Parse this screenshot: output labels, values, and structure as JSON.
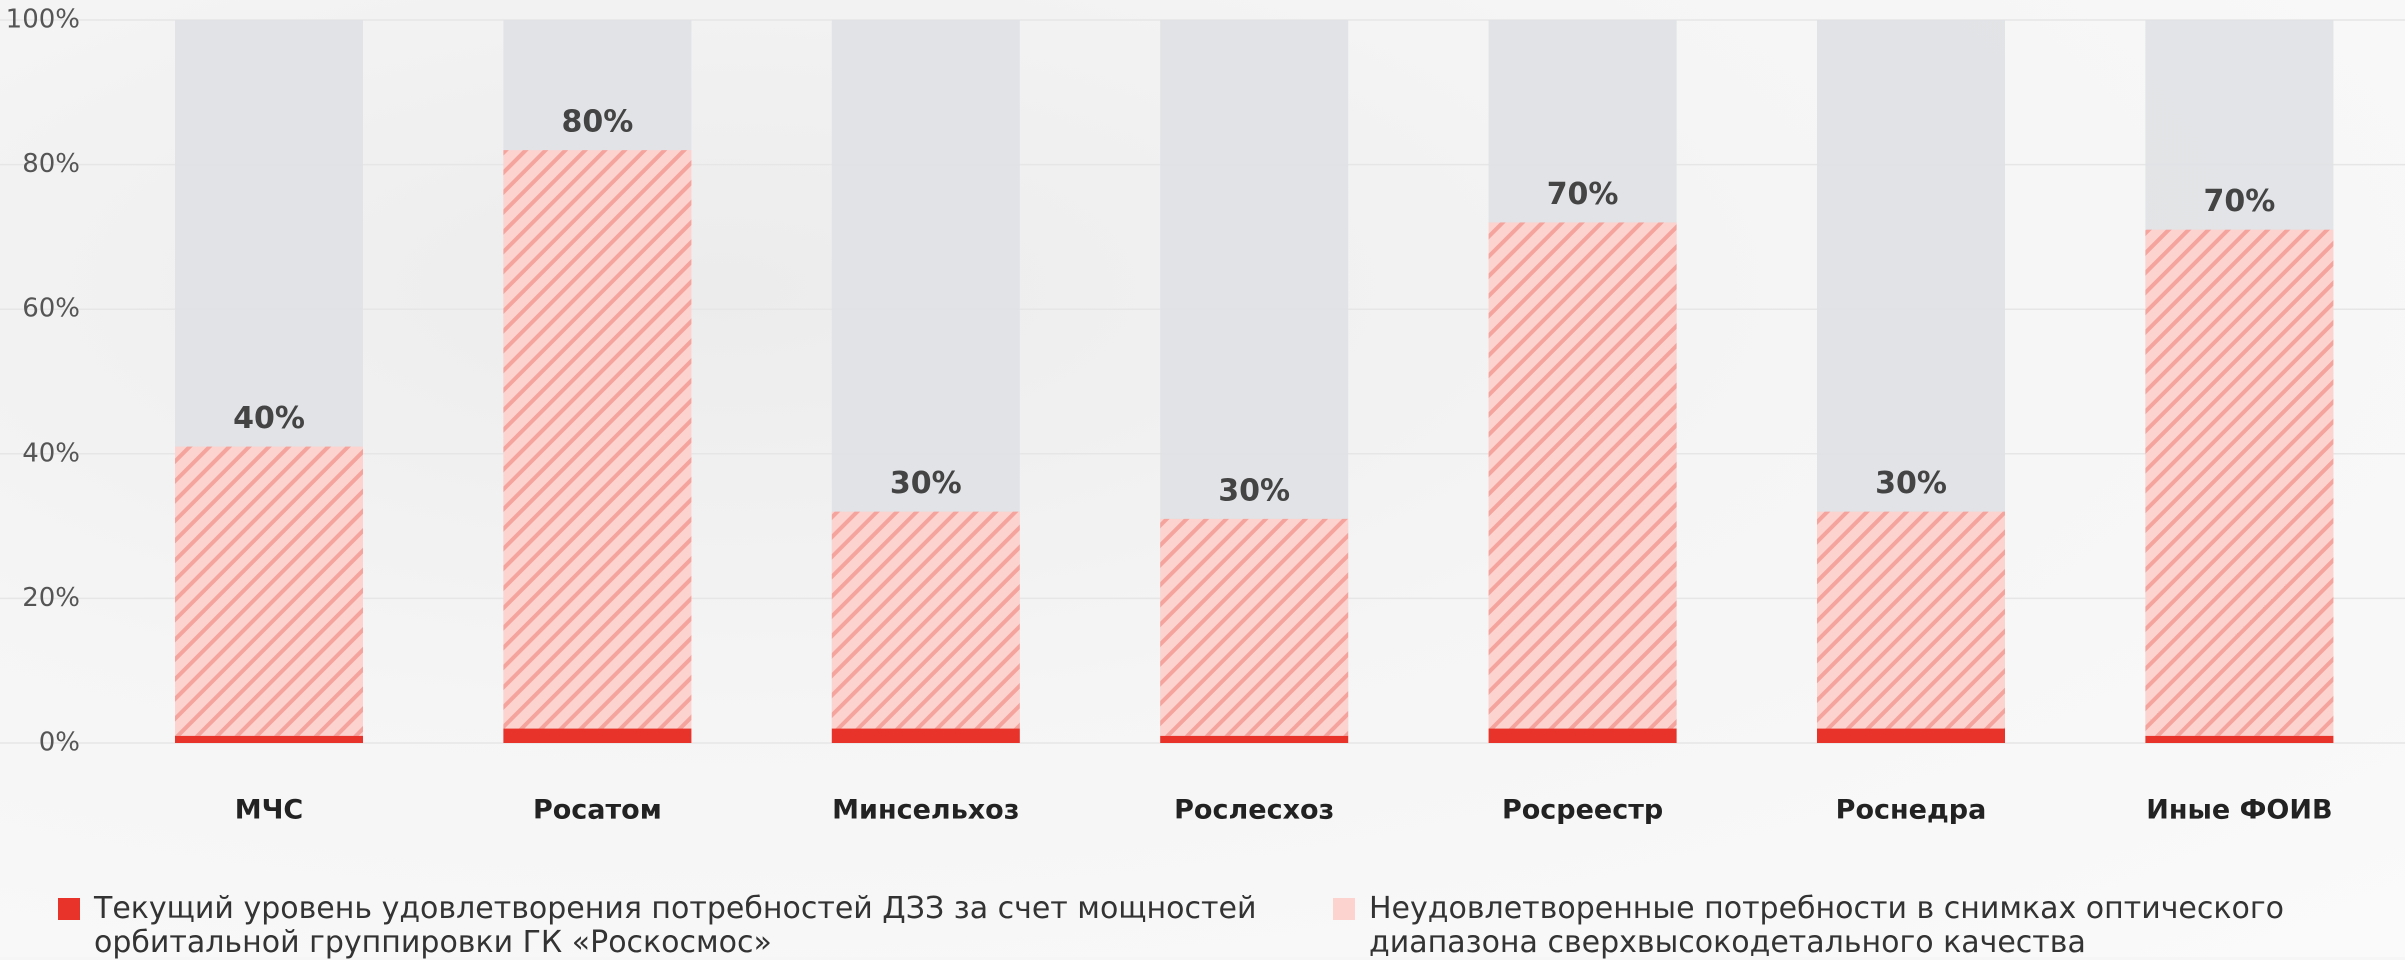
{
  "chart_data": {
    "type": "stacked_bar",
    "categories": [
      "МЧС",
      "Росатом",
      "Минсельхоз",
      "Рослесхоз",
      "Росреестр",
      "Роснедра",
      "Иные ФОИВ"
    ],
    "series": [
      {
        "name": "Текущий уровень удовлетворения потребностей ДЗЗ за счет мощностей орбитальной группировки ГК «Роскосмос»",
        "color": "#e8332a",
        "values": [
          1,
          2,
          2,
          1,
          2,
          2,
          1
        ]
      },
      {
        "name": "Неудовлетворенные потребности в снимках оптического диапазона сверхвысокодетального качества",
        "color": "#fcd3cf",
        "values": [
          40,
          80,
          30,
          30,
          70,
          30,
          70
        ],
        "value_labels": [
          "40%",
          "80%",
          "30%",
          "30%",
          "70%",
          "30%",
          "70%"
        ]
      }
    ],
    "ylim": [
      0,
      100
    ],
    "yticks": [
      {
        "value": 0,
        "label": "0%"
      },
      {
        "value": 20,
        "label": "20%"
      },
      {
        "value": 40,
        "label": "40%"
      },
      {
        "value": 60,
        "label": "60%"
      },
      {
        "value": 80,
        "label": "80%"
      },
      {
        "value": 100,
        "label": "100%"
      }
    ],
    "grid": true
  }
}
